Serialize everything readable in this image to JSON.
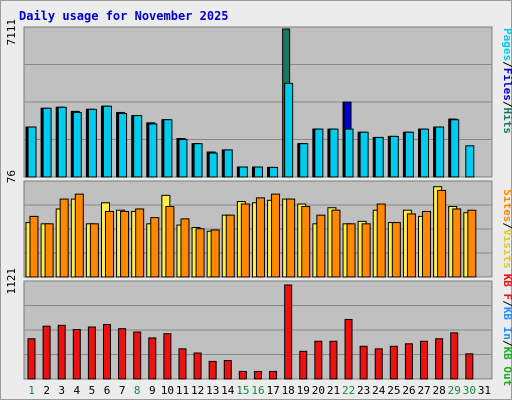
{
  "title": "Daily usage for November 2025",
  "colors": {
    "background": "#ececec",
    "panel": "#c0c0c0",
    "title": "#0000cc",
    "grid": "#888888",
    "hits": "#157a5f",
    "files": "#0000cc",
    "pages": "#00ccee",
    "visits": "#ffee44",
    "sites": "#ff8800",
    "kbin": "#1e90ff",
    "kbout": "#22aa22",
    "kbf": "#ee1111",
    "day_weekend": "#11883c",
    "day_normal": "#000000"
  },
  "axis_labels": {
    "top_max": "7111",
    "mid_max": "76",
    "bottom_max": "1121"
  },
  "legends": {
    "top": [
      {
        "text": "Pages",
        "color": "#00ccee"
      },
      {
        "text": "/",
        "color": "#000000"
      },
      {
        "text": "Files",
        "color": "#0000cc"
      },
      {
        "text": "/",
        "color": "#000000"
      },
      {
        "text": "Hits",
        "color": "#157a5f"
      }
    ],
    "mid": [
      {
        "text": "Sites",
        "color": "#ff8800"
      },
      {
        "text": "/",
        "color": "#000000"
      },
      {
        "text": "Visits",
        "color": "#ddcc22"
      }
    ],
    "bottom": [
      {
        "text": "KB F",
        "color": "#ee1111"
      },
      {
        "text": "/",
        "color": "#000000"
      },
      {
        "text": "KB In",
        "color": "#1e90ff"
      },
      {
        "text": "/",
        "color": "#000000"
      },
      {
        "text": "KB Out",
        "color": "#22aa22"
      }
    ]
  },
  "chart_data": [
    {
      "type": "bar",
      "categories": [
        "1",
        "2",
        "3",
        "4",
        "5",
        "6",
        "7",
        "8",
        "9",
        "10",
        "11",
        "12",
        "13",
        "14",
        "15",
        "16",
        "17",
        "18",
        "19",
        "20",
        "21",
        "22",
        "23",
        "24",
        "25",
        "26",
        "27",
        "28",
        "29",
        "30",
        "31"
      ],
      "ylim": [
        0,
        7111
      ],
      "series": [
        {
          "name": "Hits",
          "values": [
            2400,
            3300,
            3350,
            3150,
            3250,
            3400,
            3100,
            2950,
            2600,
            2750,
            1850,
            1600,
            1200,
            1300,
            480,
            480,
            460,
            7111,
            1600,
            2300,
            2300,
            3600,
            2150,
            1900,
            1950,
            2150,
            2300,
            2400,
            2780,
            0,
            0
          ]
        },
        {
          "name": "Files",
          "values": [
            2400,
            3300,
            3350,
            3150,
            3250,
            3400,
            3100,
            2950,
            2600,
            2750,
            1850,
            1600,
            1200,
            1300,
            480,
            480,
            460,
            0,
            1600,
            2300,
            2300,
            3600,
            2150,
            1900,
            1950,
            2150,
            2300,
            2400,
            2780,
            0,
            0
          ]
        },
        {
          "name": "Pages",
          "values": [
            2400,
            3300,
            3350,
            3100,
            3250,
            3400,
            3050,
            2950,
            2550,
            2750,
            1800,
            1600,
            1150,
            1300,
            480,
            480,
            460,
            4500,
            1600,
            2300,
            2300,
            2300,
            2150,
            1900,
            1950,
            2150,
            2300,
            2400,
            2750,
            1500,
            0
          ]
        }
      ]
    },
    {
      "type": "bar",
      "categories": [
        "1",
        "2",
        "3",
        "4",
        "5",
        "6",
        "7",
        "8",
        "9",
        "10",
        "11",
        "12",
        "13",
        "14",
        "15",
        "16",
        "17",
        "18",
        "19",
        "20",
        "21",
        "22",
        "23",
        "24",
        "25",
        "26",
        "27",
        "28",
        "29",
        "30",
        "31"
      ],
      "ylim": [
        0,
        76
      ],
      "series": [
        {
          "name": "Visits",
          "values": [
            44,
            43,
            55,
            63,
            43,
            60,
            54,
            53,
            43,
            66,
            42,
            40,
            37,
            50,
            61,
            60,
            62,
            63,
            59,
            43,
            56,
            43,
            45,
            54,
            44,
            54,
            49,
            73,
            57,
            52,
            0
          ]
        },
        {
          "name": "Sites",
          "values": [
            49,
            43,
            63,
            67,
            43,
            53,
            53,
            55,
            48,
            57,
            47,
            39,
            38,
            50,
            59,
            64,
            67,
            63,
            57,
            50,
            54,
            43,
            43,
            59,
            44,
            51,
            53,
            70,
            55,
            54,
            0
          ]
        }
      ]
    },
    {
      "type": "bar",
      "categories": [
        "1",
        "2",
        "3",
        "4",
        "5",
        "6",
        "7",
        "8",
        "9",
        "10",
        "11",
        "12",
        "13",
        "14",
        "15",
        "16",
        "17",
        "18",
        "19",
        "20",
        "21",
        "22",
        "23",
        "24",
        "25",
        "26",
        "27",
        "28",
        "29",
        "30",
        "31"
      ],
      "ylim": [
        0,
        1121
      ],
      "series": [
        {
          "name": "KB F",
          "values": [
            480,
            630,
            640,
            590,
            620,
            650,
            600,
            560,
            490,
            540,
            360,
            310,
            210,
            220,
            90,
            90,
            90,
            1121,
            330,
            450,
            450,
            710,
            390,
            360,
            390,
            420,
            450,
            480,
            550,
            300,
            0
          ]
        }
      ]
    }
  ],
  "weekend_days": [
    "1",
    "8",
    "15",
    "16",
    "22",
    "29",
    "30"
  ]
}
